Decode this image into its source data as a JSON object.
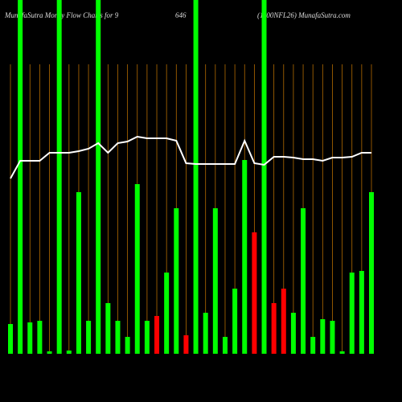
{
  "chart_data": {
    "type": "bar-line",
    "title_parts": [
      "MunafaSutra  Money Flow  Charts for 9",
      "646",
      "(1100NFL26) MunafaSutra.com"
    ],
    "categories": [
      null,
      null,
      null,
      null,
      null,
      null,
      null,
      null,
      null,
      null,
      null,
      null,
      null,
      null,
      null,
      null,
      null,
      null,
      null,
      null,
      null,
      null,
      null,
      null,
      null,
      null,
      null,
      null,
      null,
      null,
      null,
      null,
      null,
      null,
      null,
      null,
      null,
      null
    ],
    "bar_values": [
      37,
      440,
      39,
      41,
      3,
      440,
      4,
      201,
      41,
      440,
      63,
      41,
      21,
      211,
      41,
      47,
      101,
      181,
      23,
      440,
      51,
      181,
      21,
      81,
      241,
      151,
      440,
      63,
      81,
      51,
      181,
      21,
      43,
      41,
      3,
      101,
      103,
      201
    ],
    "bar_colors": [
      "#00ff00",
      "#00ff00",
      "#00ff00",
      "#00ff00",
      "#00ff00",
      "#00ff00",
      "#00ff00",
      "#00ff00",
      "#00ff00",
      "#00ff00",
      "#00ff00",
      "#00ff00",
      "#00ff00",
      "#00ff00",
      "#00ff00",
      "#ff0000",
      "#00ff00",
      "#00ff00",
      "#ff0000",
      "#00ff00",
      "#00ff00",
      "#00ff00",
      "#00ff00",
      "#00ff00",
      "#00ff00",
      "#ff0000",
      "#00ff00",
      "#ff0000",
      "#ff0000",
      "#00ff00",
      "#00ff00",
      "#00ff00",
      "#00ff00",
      "#00ff00",
      "#00ff00",
      "#00ff00",
      "#00ff00",
      "#00ff00"
    ],
    "line_values": [
      218,
      240,
      240,
      240,
      250,
      250,
      250,
      252,
      255,
      262,
      250,
      262,
      264,
      270,
      268,
      268,
      268,
      265,
      237,
      236,
      236,
      236,
      236,
      236,
      265,
      237,
      235,
      245,
      245,
      244,
      242,
      242,
      240,
      244,
      244,
      245,
      250,
      250
    ],
    "line_color": "#ffffff",
    "grid_color": "#b36b00",
    "ylim": [
      0,
      440
    ]
  }
}
